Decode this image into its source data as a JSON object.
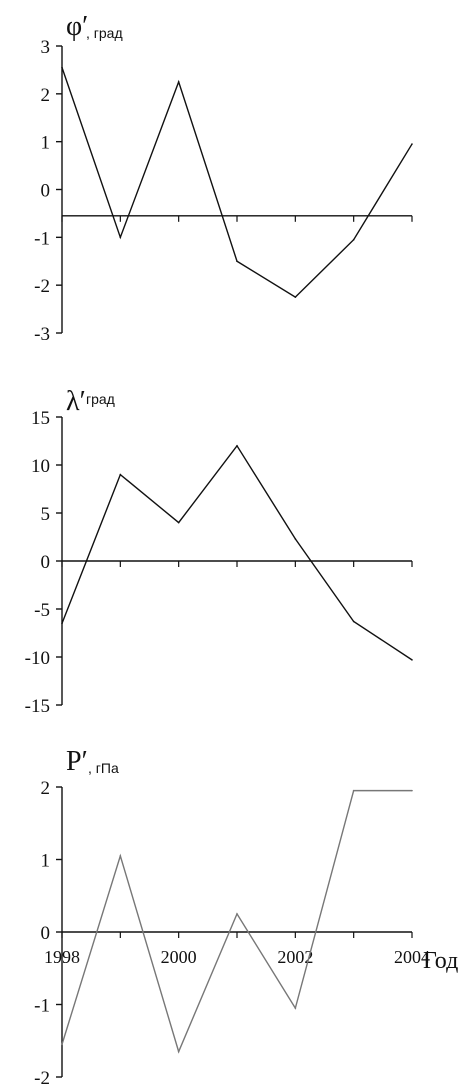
{
  "chart_data": [
    {
      "type": "line",
      "y_title": "φ′",
      "y_unit": ", град",
      "x": [
        1998,
        1999,
        2000,
        2001,
        2002,
        2003,
        2004
      ],
      "values": [
        2.55,
        -1.0,
        2.25,
        -1.5,
        -2.25,
        -1.05,
        0.95
      ],
      "reference_line": -0.55,
      "yticks": [
        3,
        2,
        1,
        0,
        -1,
        -2,
        -3
      ],
      "ylim": [
        -3,
        3
      ]
    },
    {
      "type": "line",
      "y_title": "λ′",
      "y_unit": " град",
      "x": [
        1998,
        1999,
        2000,
        2001,
        2002,
        2003,
        2004
      ],
      "values": [
        -6.5,
        9.0,
        4.0,
        12.0,
        2.3,
        -6.3,
        -10.3
      ],
      "reference_line": 0,
      "yticks": [
        15,
        10,
        5,
        0,
        -5,
        -10,
        -15
      ],
      "ylim": [
        -15,
        15
      ]
    },
    {
      "type": "line",
      "y_title": "P′",
      "y_unit": ", гПа",
      "x": [
        1998,
        1999,
        2000,
        2001,
        2002,
        2003,
        2004
      ],
      "values": [
        -1.55,
        1.05,
        -1.65,
        0.25,
        -1.05,
        1.95,
        1.95
      ],
      "reference_line": 0,
      "yticks": [
        2,
        1,
        0,
        -1,
        -2
      ],
      "ylim": [
        -2,
        2
      ],
      "xtick_labels": [
        "1998",
        "2000",
        "2002",
        "2004"
      ],
      "xlabel": "Год"
    }
  ]
}
